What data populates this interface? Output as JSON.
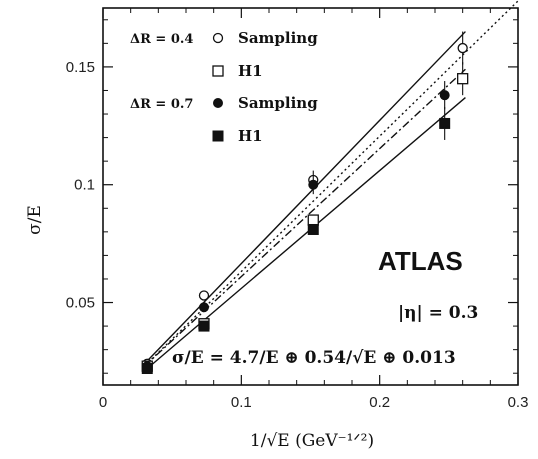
{
  "chart_data": {
    "type": "line",
    "xlabel": "1/√E (GeV⁻¹ᐟ²)",
    "ylabel": "σ/E",
    "xlim": [
      0,
      0.3
    ],
    "ylim": [
      0.015,
      0.175
    ],
    "xticks": [
      0,
      0.1,
      0.2,
      0.3
    ],
    "xtick_labels": [
      "0",
      "0.1",
      "0.2",
      "0.3"
    ],
    "yticks": [
      0.05,
      0.1,
      0.15
    ],
    "ytick_labels": [
      "0.05",
      "0.1",
      "0.15"
    ],
    "grid": false,
    "legend_position": "top-left",
    "legend": [
      {
        "group": "ΔR = 0.4",
        "label": "Sampling",
        "marker": "open-circle"
      },
      {
        "group": "",
        "label": "H1",
        "marker": "open-square"
      },
      {
        "group": "ΔR = 0.7",
        "label": "Sampling",
        "marker": "filled-circle"
      },
      {
        "group": "",
        "label": "H1",
        "marker": "filled-square"
      }
    ],
    "series": [
      {
        "name": "ΔR = 0.4 Sampling",
        "marker": "open-circle",
        "x": [
          0.032,
          0.073,
          0.152,
          0.26
        ],
        "y": [
          0.024,
          0.053,
          0.102,
          0.158
        ],
        "err": [
          0.001,
          0.002,
          0.004,
          0.007
        ]
      },
      {
        "name": "ΔR = 0.4 H1",
        "marker": "open-square",
        "x": [
          0.032,
          0.073,
          0.152,
          0.26
        ],
        "y": [
          0.023,
          0.041,
          0.085,
          0.145
        ],
        "err": [
          0.001,
          0.001,
          0.002,
          0.007
        ]
      },
      {
        "name": "ΔR = 0.7 Sampling",
        "marker": "filled-circle",
        "x": [
          0.032,
          0.073,
          0.152,
          0.247
        ],
        "y": [
          0.023,
          0.048,
          0.1,
          0.138
        ],
        "err": [
          0.001,
          0.002,
          0.004,
          0.006
        ]
      },
      {
        "name": "ΔR = 0.7 H1",
        "marker": "filled-square",
        "x": [
          0.032,
          0.073,
          0.152,
          0.247
        ],
        "y": [
          0.022,
          0.04,
          0.081,
          0.126
        ],
        "err": [
          0.001,
          0.001,
          0.002,
          0.007
        ]
      }
    ],
    "fit_lines": [
      {
        "style": "dotted",
        "x": [
          0.03,
          0.3
        ],
        "y": [
          0.023,
          0.178
        ]
      },
      {
        "style": "solid",
        "x": [
          0.03,
          0.262
        ],
        "y": [
          0.024,
          0.165
        ]
      },
      {
        "style": "dash-dot",
        "x": [
          0.03,
          0.262
        ],
        "y": [
          0.023,
          0.149
        ]
      },
      {
        "style": "solid",
        "x": [
          0.03,
          0.262
        ],
        "y": [
          0.021,
          0.137
        ]
      }
    ],
    "annotations": {
      "experiment": "ATLAS",
      "eta": "|η| = 0.3",
      "formula": "σ/E = 4.7/E ⊕ 0.54/√E ⊕ 0.013"
    }
  }
}
